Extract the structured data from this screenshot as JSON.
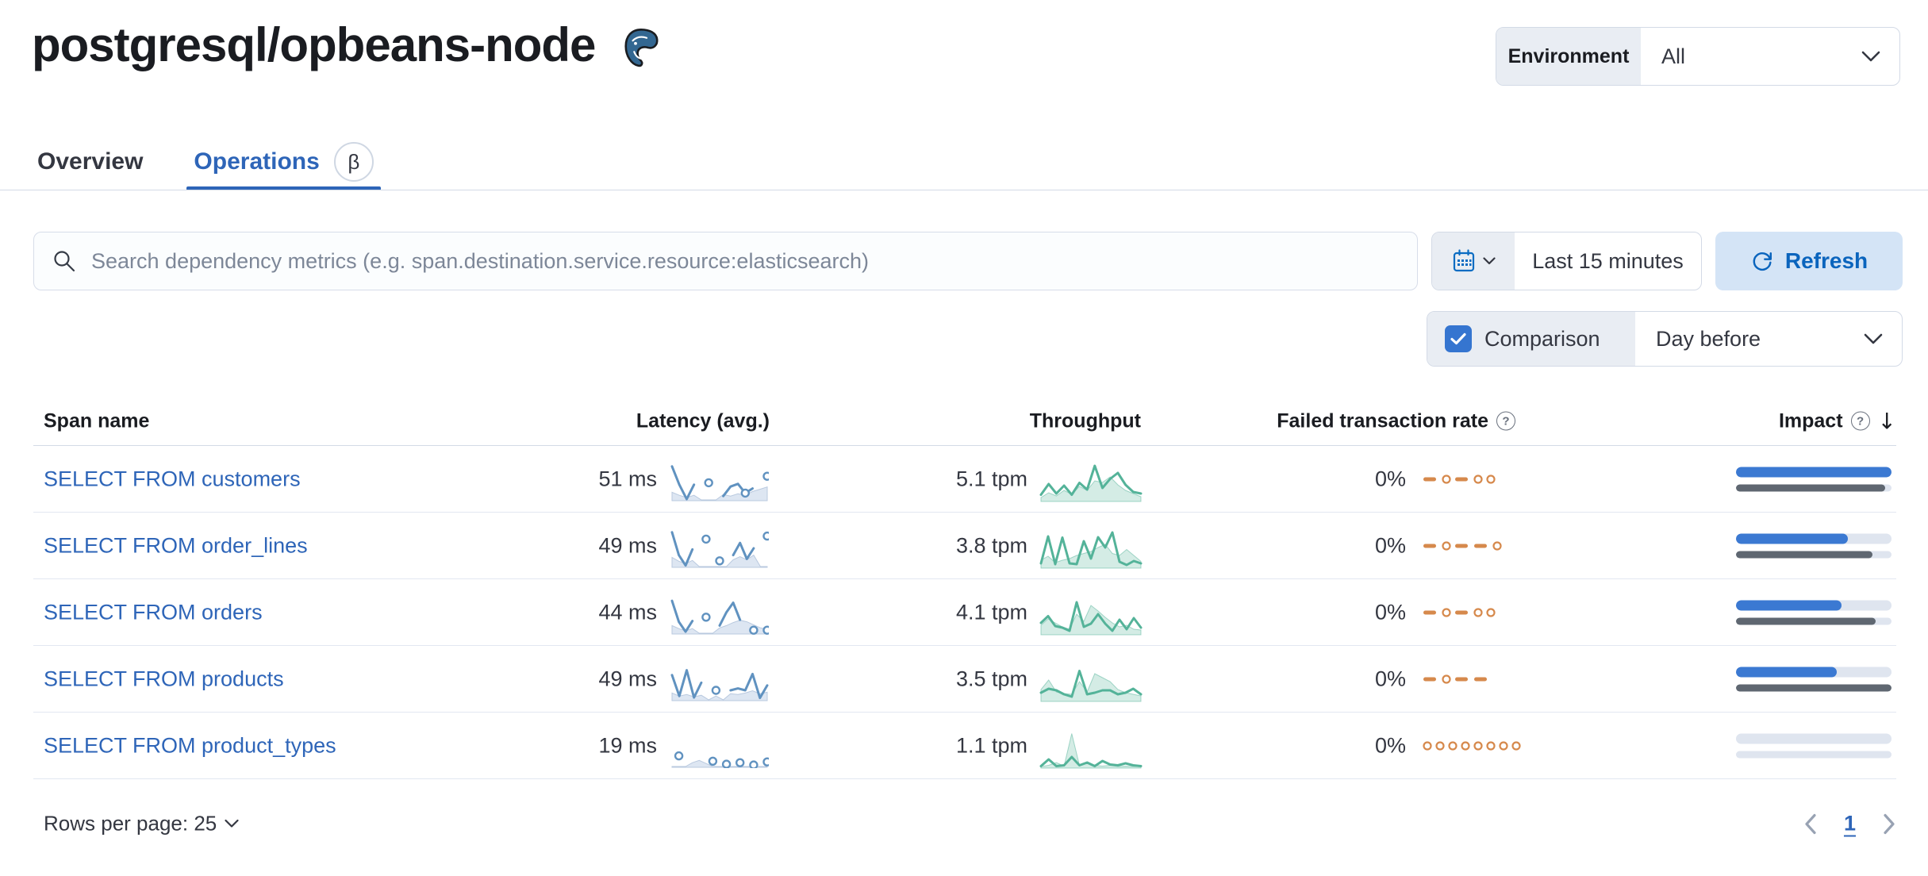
{
  "page": {
    "title": "postgresql/opbeans-node"
  },
  "environment": {
    "label": "Environment",
    "value": "All"
  },
  "tabs": {
    "overview": "Overview",
    "operations": "Operations",
    "beta": "β"
  },
  "toolbar": {
    "search_placeholder": "Search dependency metrics (e.g. span.destination.service.resource:elasticsearch)",
    "time_range": "Last 15 minutes",
    "refresh": "Refresh",
    "comparison_label": "Comparison",
    "comparison_checked": true,
    "comparison_value": "Day before"
  },
  "table": {
    "headers": {
      "span_name": "Span name",
      "latency": "Latency (avg.)",
      "throughput": "Throughput",
      "failed_rate": "Failed transaction rate",
      "impact": "Impact"
    },
    "rows": [
      {
        "span_name": "SELECT FROM customers",
        "latency": "51 ms",
        "throughput": "5.1 tpm",
        "failed_rate": "0%",
        "impact_current": 100,
        "impact_previous": 96,
        "latency_spark": {
          "line": [
            88,
            40,
            2,
            40,
            null,
            45,
            null,
            10,
            35,
            42,
            18,
            30,
            null,
            62
          ],
          "comp": [
            20,
            12,
            6,
            12,
            0,
            0,
            0,
            14,
            10,
            16,
            12,
            22,
            28,
            34
          ],
          "markers": [
            10
          ]
        },
        "throughput_spark": {
          "line": [
            15,
            42,
            18,
            38,
            15,
            45,
            28,
            88,
            32,
            55,
            70,
            40,
            22,
            18
          ],
          "comp": [
            8,
            20,
            12,
            26,
            16,
            36,
            26,
            50,
            46,
            60,
            40,
            26,
            18,
            10
          ]
        },
        "failed_pattern": "-o-oo"
      },
      {
        "span_name": "SELECT FROM order_lines",
        "latency": "49 ms",
        "throughput": "3.8 tpm",
        "failed_rate": "0%",
        "impact_current": 72,
        "impact_previous": 88,
        "latency_spark": {
          "line": [
            90,
            30,
            3,
            45,
            null,
            72,
            null,
            15,
            null,
            30,
            62,
            20,
            48,
            null,
            80
          ],
          "comp": [
            24,
            14,
            8,
            16,
            0,
            0,
            0,
            0,
            0,
            18,
            26,
            18,
            30,
            0,
            0
          ],
          "markers": []
        },
        "throughput_spark": {
          "line": [
            10,
            78,
            8,
            75,
            10,
            8,
            66,
            22,
            76,
            50,
            88,
            14,
            6,
            16,
            10
          ],
          "comp": [
            18,
            28,
            12,
            18,
            22,
            30,
            35,
            40,
            50,
            58,
            35,
            30,
            45,
            30,
            15
          ]
        },
        "failed_pattern": "-o--o"
      },
      {
        "span_name": "SELECT FROM orders",
        "latency": "44 ms",
        "throughput": "4.1 tpm",
        "failed_rate": "0%",
        "impact_current": 68,
        "impact_previous": 90,
        "latency_spark": {
          "line": [
            85,
            30,
            4,
            32,
            null,
            42,
            null,
            20,
            55,
            80,
            35,
            null,
            8,
            null,
            8
          ],
          "comp": [
            20,
            12,
            6,
            12,
            0,
            0,
            0,
            14,
            20,
            28,
            34,
            30,
            22,
            14,
            10
          ],
          "markers": []
        },
        "throughput_spark": {
          "line": [
            28,
            45,
            20,
            16,
            8,
            80,
            18,
            26,
            50,
            26,
            8,
            36,
            12,
            40,
            16
          ],
          "comp": [
            22,
            38,
            28,
            18,
            12,
            50,
            32,
            72,
            58,
            42,
            28,
            18,
            22,
            12,
            10
          ]
        },
        "failed_pattern": "-o-oo"
      },
      {
        "span_name": "SELECT FROM products",
        "latency": "49 ms",
        "throughput": "3.5 tpm",
        "failed_rate": "0%",
        "impact_current": 65,
        "impact_previous": 100,
        "latency_spark": {
          "line": [
            65,
            10,
            78,
            6,
            45,
            null,
            25,
            null,
            25,
            30,
            25,
            68,
            5,
            38
          ],
          "comp": [
            18,
            10,
            14,
            8,
            12,
            0,
            10,
            0,
            16,
            14,
            18,
            24,
            16,
            20
          ],
          "markers": []
        },
        "throughput_spark": {
          "line": [
            20,
            30,
            26,
            16,
            10,
            75,
            16,
            20,
            26,
            26,
            16,
            20,
            30,
            16
          ],
          "comp": [
            28,
            52,
            22,
            18,
            16,
            48,
            22,
            68,
            58,
            48,
            28,
            20,
            16,
            12
          ]
        },
        "failed_pattern": "-o--"
      },
      {
        "span_name": "SELECT FROM product_types",
        "latency": "19 ms",
        "throughput": "1.1 tpm",
        "failed_rate": "0%",
        "impact_current": 0,
        "impact_previous": 0,
        "latency_spark": {
          "line": [
            null,
            28,
            null,
            null,
            null,
            null,
            14,
            null,
            6,
            null,
            10,
            null,
            4,
            null,
            12
          ],
          "comp": [
            0,
            0,
            0,
            10,
            16,
            8,
            0,
            0,
            0,
            0,
            0,
            0,
            0,
            0,
            0
          ],
          "markers": []
        },
        "throughput_spark": {
          "line": [
            3,
            20,
            3,
            5,
            26,
            5,
            12,
            3,
            16,
            7,
            5,
            10,
            5,
            3
          ],
          "comp": [
            2,
            5,
            12,
            3,
            85,
            5,
            10,
            5,
            3,
            5,
            2,
            3,
            2,
            2
          ]
        },
        "failed_pattern": "oooooooo"
      }
    ]
  },
  "pagination": {
    "rows_per_page": "Rows per page: 25",
    "current_page": "1"
  },
  "colors": {
    "accent_blue": "#2e65b8",
    "sparkline_blue": "#6092c0",
    "sparkline_blue_comp_fill": "#dde6f2",
    "sparkline_blue_comp_stroke": "#b9c9df",
    "sparkline_green": "#54b399",
    "sparkline_orange": "#d6894c",
    "impact_blue": "#3b79d2",
    "impact_gray": "#5f6771"
  }
}
